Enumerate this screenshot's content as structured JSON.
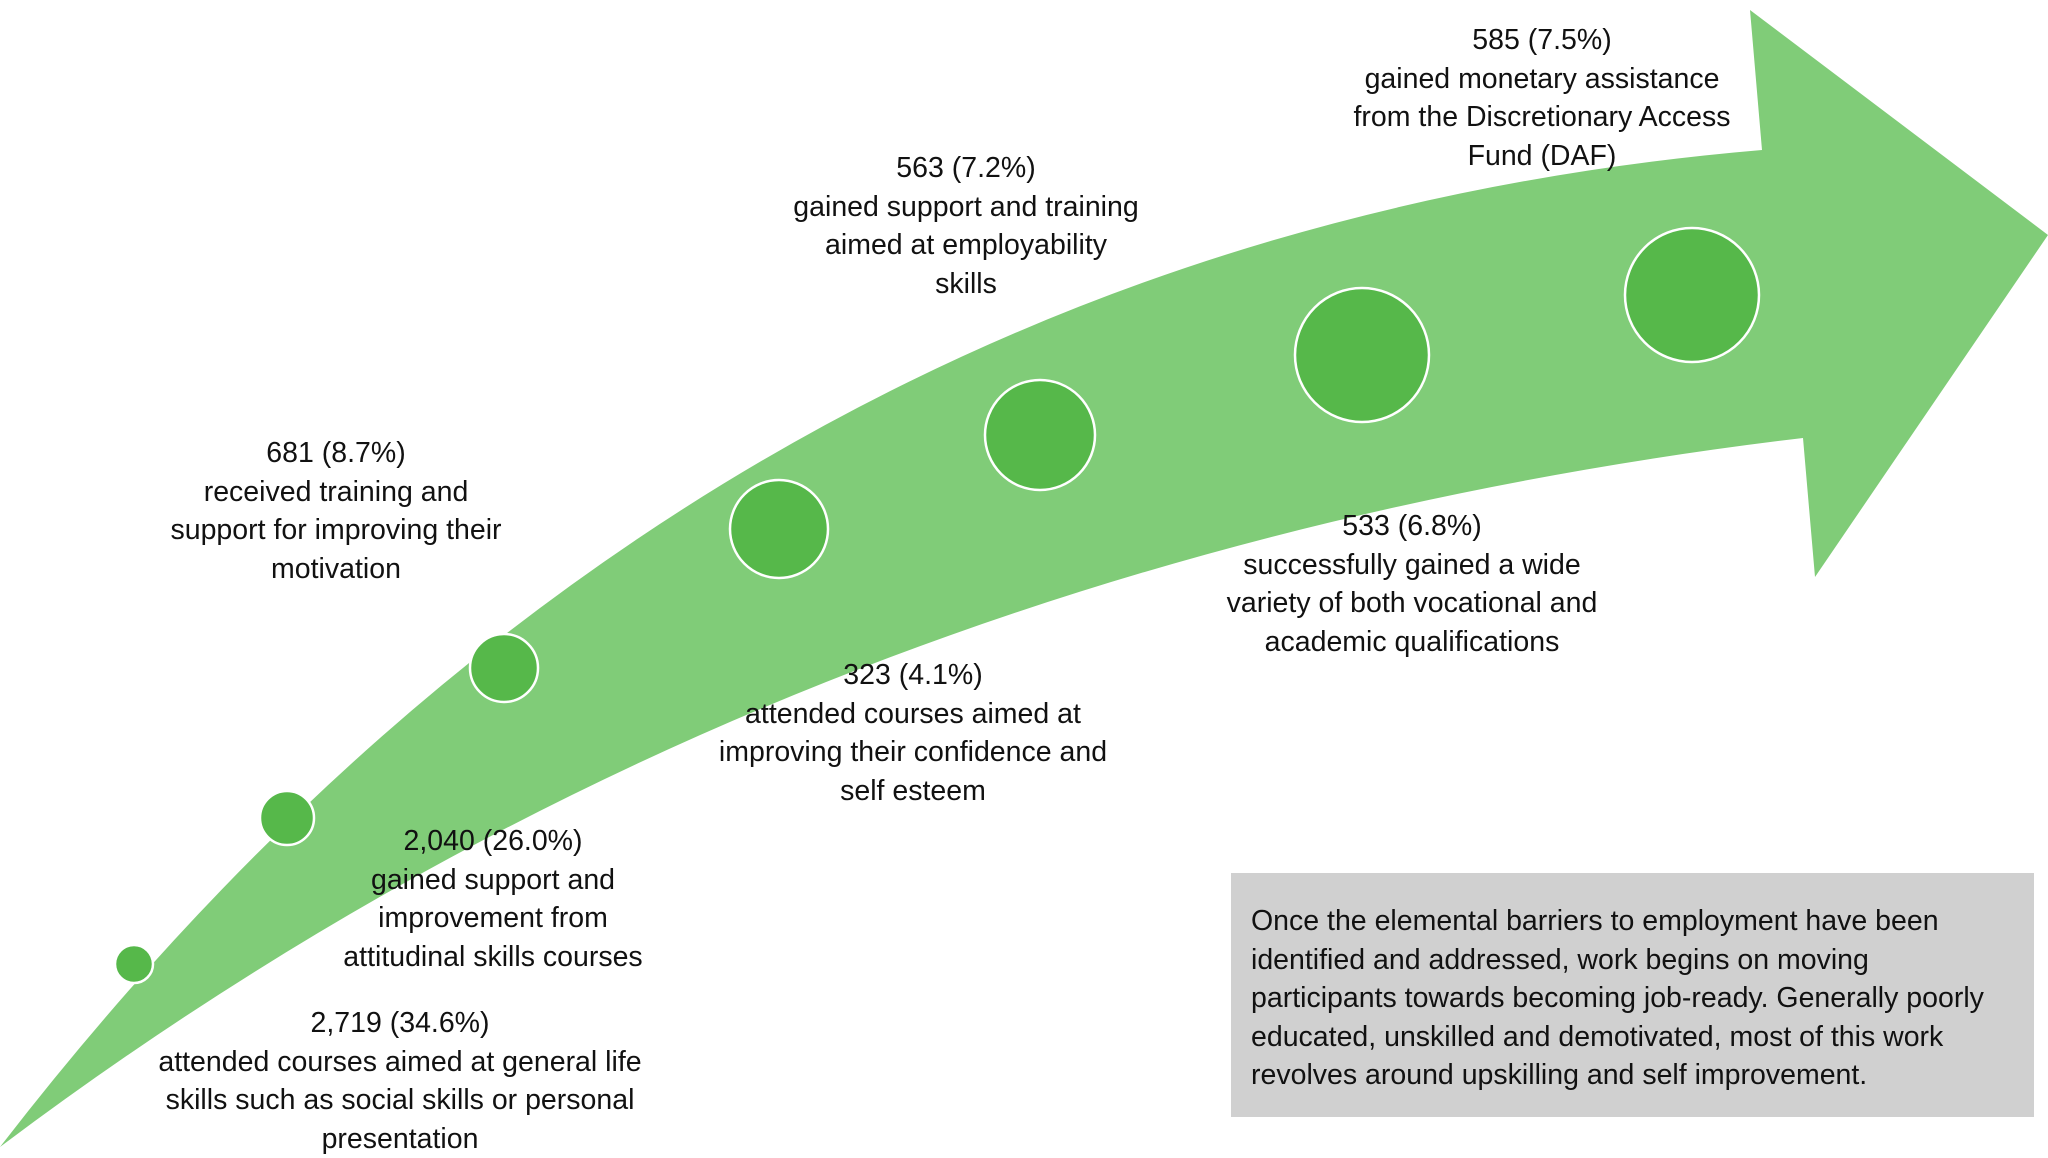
{
  "colors": {
    "arrow": "#80cc78",
    "circle": "#56b84a",
    "circle_stroke": "#ffffff",
    "note_bg": "#d0d0d0",
    "text": "#111111"
  },
  "steps": [
    {
      "value": "2,719 (34.6%)",
      "lines": [
        "attended courses aimed at general life",
        "skills such as social skills or personal",
        "presentation"
      ]
    },
    {
      "value": "2,040 (26.0%)",
      "lines": [
        "gained support and",
        "improvement from",
        "attitudinal skills courses"
      ]
    },
    {
      "value": "681 (8.7%)",
      "lines": [
        "received training and",
        "support for improving their",
        "motivation"
      ]
    },
    {
      "value": "323 (4.1%)",
      "lines": [
        "attended courses aimed at",
        "improving their confidence and",
        "self esteem"
      ]
    },
    {
      "value": "563 (7.2%)",
      "lines": [
        "gained support and training",
        "aimed at employability",
        "skills"
      ]
    },
    {
      "value": "533 (6.8%)",
      "lines": [
        "successfully gained a wide",
        "variety of both vocational and",
        "academic qualifications"
      ]
    },
    {
      "value": "585 (7.5%)",
      "lines": [
        "gained monetary assistance",
        "from the Discretionary Access",
        "Fund (DAF)"
      ]
    }
  ],
  "note": {
    "lines": [
      "Once the elemental barriers to employment have been",
      "identified and addressed, work begins on moving",
      "participants towards becoming job-ready. Generally poorly",
      "educated, unskilled and demotivated, most of this work",
      "revolves around upskilling and self improvement."
    ]
  }
}
